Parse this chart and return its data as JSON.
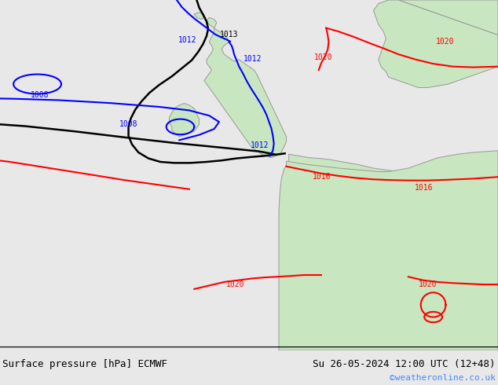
{
  "title_left": "Surface pressure [hPa] ECMWF",
  "title_right": "Su 26-05-2024 12:00 UTC (12+48)",
  "watermark": "©weatheronline.co.uk",
  "bg_color": "#e8e8e8",
  "land_color": "#c8e6c0",
  "sea_color": "#e8e8e8",
  "border_color": "#999999",
  "title_bg": "#ffffff",
  "fig_width": 6.34,
  "fig_height": 4.9,
  "dpi": 100
}
